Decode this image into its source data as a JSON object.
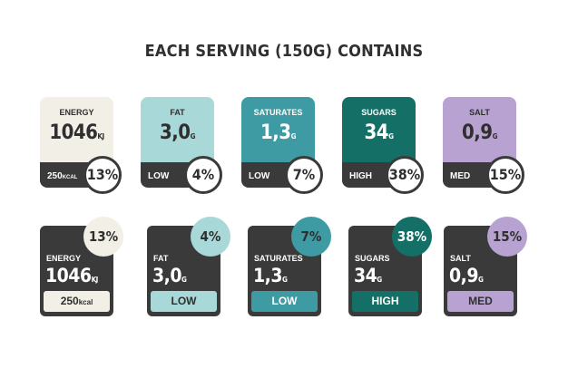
{
  "title": "EACH SERVING (150G) CONTAINS",
  "colors": {
    "energy": "#f1efe6",
    "fat": "#a9d8d8",
    "saturates": "#3e9ba3",
    "sugars": "#147066",
    "salt": "#b7a2d1",
    "dark": "#3a3a3a"
  },
  "row1": [
    {
      "name": "ENERGY",
      "value": "1046",
      "unit": "KJ",
      "sub": "250",
      "sub_unit": "KCAL",
      "percent": "13%"
    },
    {
      "name": "FAT",
      "value": "3,0",
      "unit": "G",
      "level": "LOW",
      "percent": "4%"
    },
    {
      "name": "SATURATES",
      "value": "1,3",
      "unit": "G",
      "level": "LOW",
      "percent": "7%"
    },
    {
      "name": "SUGARS",
      "value": "34",
      "unit": "G",
      "level": "HIGH",
      "percent": "38%"
    },
    {
      "name": "SALT",
      "value": "0,9",
      "unit": "G",
      "level": "MED",
      "percent": "15%"
    }
  ],
  "row2": [
    {
      "name": "ENERGY",
      "value": "1046",
      "unit": "KJ",
      "foot": "250",
      "foot_unit": "kcal",
      "percent": "13%"
    },
    {
      "name": "FAT",
      "value": "3,0",
      "unit": "G",
      "foot": "LOW",
      "percent": "4%"
    },
    {
      "name": "SATURATES",
      "value": "1,3",
      "unit": "G",
      "foot": "LOW",
      "percent": "7%"
    },
    {
      "name": "SUGARS",
      "value": "34",
      "unit": "G",
      "foot": "HIGH",
      "percent": "38%"
    },
    {
      "name": "SALT",
      "value": "0,9",
      "unit": "G",
      "foot": "MED",
      "percent": "15%"
    }
  ]
}
